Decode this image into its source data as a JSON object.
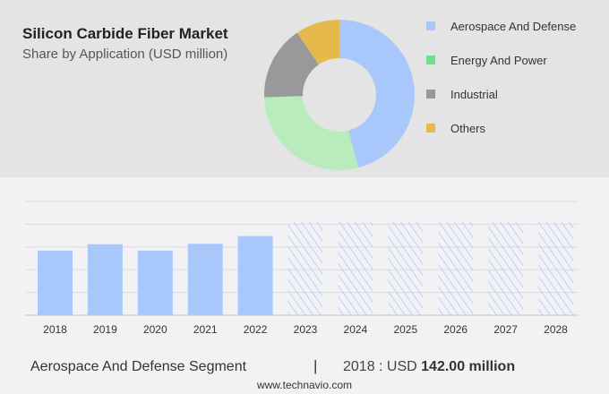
{
  "header": {
    "title": "Silicon Carbide Fiber Market",
    "subtitle": "Share by Application (USD million)"
  },
  "chart_data": [
    {
      "type": "pie",
      "variant": "donut",
      "slices": [
        {
          "name": "Aerospace And Defense",
          "share": 46,
          "color": "#a8c8fc"
        },
        {
          "name": "Energy And Power",
          "share": 28.5,
          "color": "#b8ecbc"
        },
        {
          "name": "Industrial",
          "share": 16,
          "color": "#999999"
        },
        {
          "name": "Others",
          "share": 9.5,
          "color": "#e6b94c"
        }
      ],
      "legend_colors": [
        "#a8c8fc",
        "#6ee08c",
        "#999999",
        "#e6b94c"
      ],
      "legend": "right"
    },
    {
      "type": "bar",
      "categories": [
        "2018",
        "2019",
        "2020",
        "2021",
        "2022",
        "2023",
        "2024",
        "2025",
        "2026",
        "2027",
        "2028"
      ],
      "values": [
        142,
        156,
        142,
        157,
        174,
        null,
        null,
        null,
        null,
        null,
        null
      ],
      "forecast": [
        false,
        false,
        false,
        false,
        false,
        true,
        true,
        true,
        true,
        true,
        true
      ],
      "color": "#a8c8fc",
      "ylim": [
        0,
        250
      ],
      "grid": true
    }
  ],
  "footer": {
    "segment": "Aerospace And Defense Segment",
    "separator": "|",
    "year_label": "2018 : USD ",
    "value": "142.00 million",
    "site": "www.technavio.com"
  }
}
